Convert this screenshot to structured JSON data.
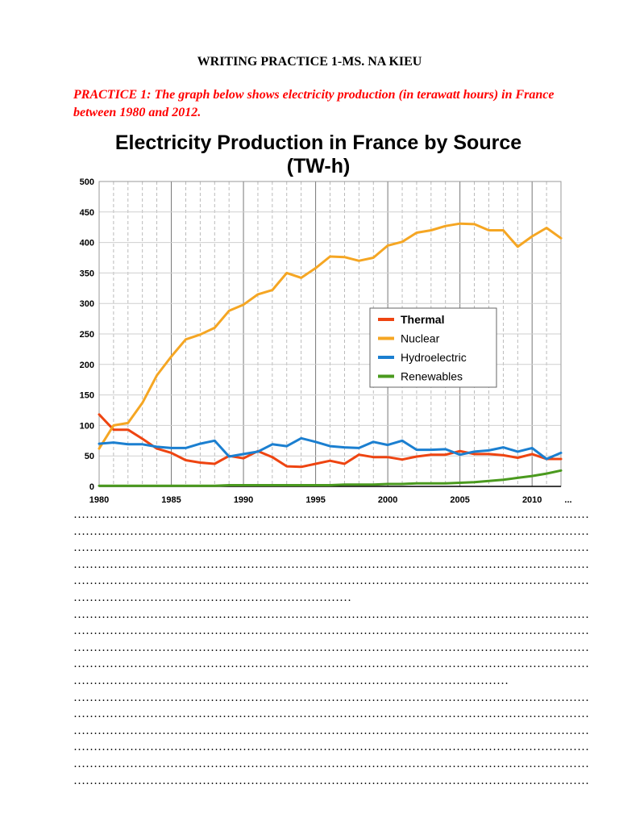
{
  "header": {
    "title": "WRITING PRACTICE 1-MS. NA KIEU"
  },
  "prompt": {
    "text": "PRACTICE 1: The graph below shows electricity production (in terawatt hours) in France between 1980 and 2012."
  },
  "chart_data": {
    "type": "line",
    "title": "Electricity Production in France by Source",
    "subtitle": "(TW-h)",
    "xlabel": "",
    "ylabel": "",
    "xlim": [
      1980,
      2012
    ],
    "ylim": [
      0,
      500
    ],
    "x_ticks": [
      "1980",
      "1985",
      "1990",
      "1995",
      "2000",
      "2005",
      "2010",
      "..."
    ],
    "y_ticks": [
      "0",
      "50",
      "100",
      "150",
      "200",
      "250",
      "300",
      "350",
      "400",
      "450",
      "500"
    ],
    "x": [
      1980,
      1981,
      1982,
      1983,
      1984,
      1985,
      1986,
      1987,
      1988,
      1989,
      1990,
      1991,
      1992,
      1993,
      1994,
      1995,
      1996,
      1997,
      1998,
      1999,
      2000,
      2001,
      2002,
      2003,
      2004,
      2005,
      2006,
      2007,
      2008,
      2009,
      2010,
      2011,
      2012
    ],
    "legend_position": "center-right",
    "series": [
      {
        "name": "Thermal",
        "color": "#ee4411",
        "values": [
          118,
          93,
          93,
          78,
          62,
          55,
          43,
          39,
          37,
          50,
          46,
          58,
          48,
          33,
          32,
          37,
          42,
          37,
          52,
          48,
          48,
          44,
          49,
          52,
          52,
          58,
          53,
          53,
          51,
          47,
          53,
          45,
          45
        ]
      },
      {
        "name": "Nuclear",
        "color": "#f5a623",
        "values": [
          62,
          100,
          104,
          137,
          182,
          213,
          241,
          249,
          260,
          288,
          298,
          315,
          322,
          350,
          342,
          358,
          377,
          376,
          370,
          375,
          395,
          401,
          416,
          420,
          427,
          431,
          430,
          420,
          420,
          393,
          410,
          424,
          407
        ]
      },
      {
        "name": "Hydroelectric",
        "color": "#1b7fd0",
        "values": [
          70,
          72,
          69,
          69,
          65,
          63,
          63,
          70,
          75,
          49,
          53,
          57,
          69,
          66,
          79,
          73,
          66,
          64,
          63,
          73,
          68,
          75,
          60,
          60,
          61,
          52,
          57,
          59,
          64,
          57,
          63,
          45,
          55
        ]
      },
      {
        "name": "Renewables",
        "color": "#4a9a1e",
        "values": [
          1,
          1,
          1,
          1,
          1,
          1,
          1,
          1,
          1,
          2,
          2,
          2,
          2,
          2,
          2,
          2,
          2,
          3,
          3,
          3,
          4,
          4,
          5,
          5,
          5,
          6,
          7,
          9,
          11,
          14,
          17,
          21,
          26
        ]
      }
    ]
  },
  "answer_lines": [
    "…………………………………………………………………………………………………………………",
    "…………………………………………………………………………………………………………………",
    "…………………………………………………………………………………………………………………",
    "…………………………………………………………………………………………………………………",
    "…………………………………………………………………………………………………………………",
    "……………………………………………………………",
    "…………………………………………………………………………………………………………………",
    "…………………………………………………………………………………………………………………",
    "…………………………………………………………………………………………………………………",
    "…………………………………………………………………………………………………………………",
    "………………………………………………………………………………………………",
    "…………………………………………………………………………………………………………………",
    "…………………………………………………………………………………………………………………",
    "…………………………………………………………………………………………………………………",
    "…………………………………………………………………………………………………………………",
    "…………………………………………………………………………………………………………………",
    "…………………………………………………………………………………………………………………"
  ]
}
